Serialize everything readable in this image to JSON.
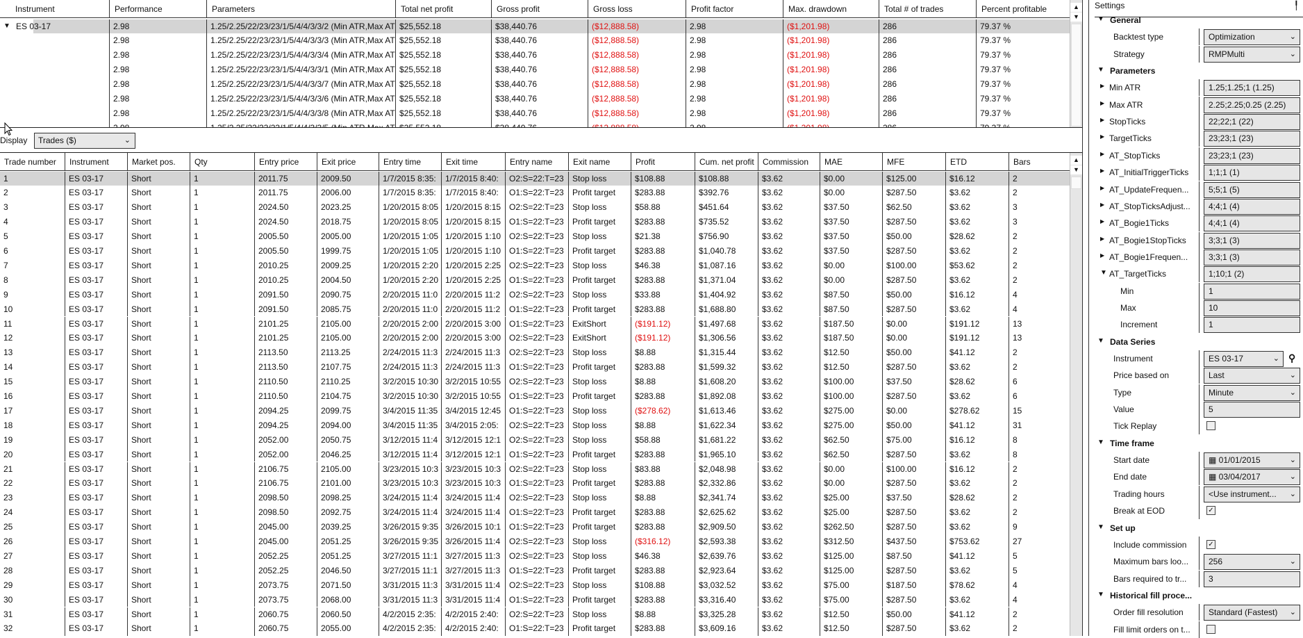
{
  "optimization_grid": {
    "columns": [
      "Instrument",
      "Performance",
      "Parameters",
      "Total net profit",
      "Gross profit",
      "Gross loss",
      "Profit factor",
      "Max. drawdown",
      "Total # of trades",
      "Percent profitable"
    ],
    "group_instrument": "ES 03-17",
    "rows": [
      [
        "2.98",
        "1.25/2.25/22/23/23/1/5/4/4/3/3/2 (Min ATR,Max AT",
        "$25,552.18",
        "$38,440.76",
        "($12,888.58)",
        "2.98",
        "($1,201.98)",
        "286",
        "79.37 %"
      ],
      [
        "2.98",
        "1.25/2.25/22/23/23/1/5/4/4/3/3/3 (Min ATR,Max AT",
        "$25,552.18",
        "$38,440.76",
        "($12,888.58)",
        "2.98",
        "($1,201.98)",
        "286",
        "79.37 %"
      ],
      [
        "2.98",
        "1.25/2.25/22/23/23/1/5/4/4/3/3/4 (Min ATR,Max AT",
        "$25,552.18",
        "$38,440.76",
        "($12,888.58)",
        "2.98",
        "($1,201.98)",
        "286",
        "79.37 %"
      ],
      [
        "2.98",
        "1.25/2.25/22/23/23/1/5/4/4/3/3/1 (Min ATR,Max AT",
        "$25,552.18",
        "$38,440.76",
        "($12,888.58)",
        "2.98",
        "($1,201.98)",
        "286",
        "79.37 %"
      ],
      [
        "2.98",
        "1.25/2.25/22/23/23/1/5/4/4/3/3/7 (Min ATR,Max AT",
        "$25,552.18",
        "$38,440.76",
        "($12,888.58)",
        "2.98",
        "($1,201.98)",
        "286",
        "79.37 %"
      ],
      [
        "2.98",
        "1.25/2.25/22/23/23/1/5/4/4/3/3/6 (Min ATR,Max AT",
        "$25,552.18",
        "$38,440.76",
        "($12,888.58)",
        "2.98",
        "($1,201.98)",
        "286",
        "79.37 %"
      ],
      [
        "2.98",
        "1.25/2.25/22/23/23/1/5/4/4/3/3/8 (Min ATR,Max AT",
        "$25,552.18",
        "$38,440.76",
        "($12,888.58)",
        "2.98",
        "($1,201.98)",
        "286",
        "79.37 %"
      ],
      [
        "2.98",
        "1.25/2.25/22/23/23/1/5/4/4/3/3/5 (Min ATR,Max AT",
        "$25,552.18",
        "$38,440.76",
        "($12,888.58)",
        "2.98",
        "($1,201.98)",
        "286",
        "79.37 %"
      ]
    ]
  },
  "display": {
    "label": "Display",
    "value": "Trades ($)"
  },
  "trades_grid": {
    "columns": [
      "Trade number",
      "Instrument",
      "Market pos.",
      "Qty",
      "Entry price",
      "Exit price",
      "Entry time",
      "Exit time",
      "Entry name",
      "Exit name",
      "Profit",
      "Cum. net profit",
      "Commission",
      "MAE",
      "MFE",
      "ETD",
      "Bars"
    ],
    "rows": [
      [
        "1",
        "ES 03-17",
        "Short",
        "1",
        "2011.75",
        "2009.50",
        "1/7/2015 8:35:",
        "1/7/2015 8:40:",
        "O2:S=22:T=23",
        "Stop loss",
        "$108.88",
        "$108.88",
        "$3.62",
        "$0.00",
        "$125.00",
        "$16.12",
        "2"
      ],
      [
        "2",
        "ES 03-17",
        "Short",
        "1",
        "2011.75",
        "2006.00",
        "1/7/2015 8:35:",
        "1/7/2015 8:40:",
        "O1:S=22:T=23",
        "Profit target",
        "$283.88",
        "$392.76",
        "$3.62",
        "$0.00",
        "$287.50",
        "$3.62",
        "2"
      ],
      [
        "3",
        "ES 03-17",
        "Short",
        "1",
        "2024.50",
        "2023.25",
        "1/20/2015 8:05",
        "1/20/2015 8:15",
        "O2:S=22:T=23",
        "Stop loss",
        "$58.88",
        "$451.64",
        "$3.62",
        "$37.50",
        "$62.50",
        "$3.62",
        "3"
      ],
      [
        "4",
        "ES 03-17",
        "Short",
        "1",
        "2024.50",
        "2018.75",
        "1/20/2015 8:05",
        "1/20/2015 8:15",
        "O1:S=22:T=23",
        "Profit target",
        "$283.88",
        "$735.52",
        "$3.62",
        "$37.50",
        "$287.50",
        "$3.62",
        "3"
      ],
      [
        "5",
        "ES 03-17",
        "Short",
        "1",
        "2005.50",
        "2005.00",
        "1/20/2015 1:05",
        "1/20/2015 1:10",
        "O2:S=22:T=23",
        "Stop loss",
        "$21.38",
        "$756.90",
        "$3.62",
        "$37.50",
        "$50.00",
        "$28.62",
        "2"
      ],
      [
        "6",
        "ES 03-17",
        "Short",
        "1",
        "2005.50",
        "1999.75",
        "1/20/2015 1:05",
        "1/20/2015 1:10",
        "O1:S=22:T=23",
        "Profit target",
        "$283.88",
        "$1,040.78",
        "$3.62",
        "$37.50",
        "$287.50",
        "$3.62",
        "2"
      ],
      [
        "7",
        "ES 03-17",
        "Short",
        "1",
        "2010.25",
        "2009.25",
        "1/20/2015 2:20",
        "1/20/2015 2:25",
        "O2:S=22:T=23",
        "Stop loss",
        "$46.38",
        "$1,087.16",
        "$3.62",
        "$0.00",
        "$100.00",
        "$53.62",
        "2"
      ],
      [
        "8",
        "ES 03-17",
        "Short",
        "1",
        "2010.25",
        "2004.50",
        "1/20/2015 2:20",
        "1/20/2015 2:25",
        "O1:S=22:T=23",
        "Profit target",
        "$283.88",
        "$1,371.04",
        "$3.62",
        "$0.00",
        "$287.50",
        "$3.62",
        "2"
      ],
      [
        "9",
        "ES 03-17",
        "Short",
        "1",
        "2091.50",
        "2090.75",
        "2/20/2015 11:0",
        "2/20/2015 11:2",
        "O2:S=22:T=23",
        "Stop loss",
        "$33.88",
        "$1,404.92",
        "$3.62",
        "$87.50",
        "$50.00",
        "$16.12",
        "4"
      ],
      [
        "10",
        "ES 03-17",
        "Short",
        "1",
        "2091.50",
        "2085.75",
        "2/20/2015 11:0",
        "2/20/2015 11:2",
        "O1:S=22:T=23",
        "Profit target",
        "$283.88",
        "$1,688.80",
        "$3.62",
        "$87.50",
        "$287.50",
        "$3.62",
        "4"
      ],
      [
        "11",
        "ES 03-17",
        "Short",
        "1",
        "2101.25",
        "2105.00",
        "2/20/2015 2:00",
        "2/20/2015 3:00",
        "O1:S=22:T=23",
        "ExitShort",
        "($191.12)",
        "$1,497.68",
        "$3.62",
        "$187.50",
        "$0.00",
        "$191.12",
        "13"
      ],
      [
        "12",
        "ES 03-17",
        "Short",
        "1",
        "2101.25",
        "2105.00",
        "2/20/2015 2:00",
        "2/20/2015 3:00",
        "O2:S=22:T=23",
        "ExitShort",
        "($191.12)",
        "$1,306.56",
        "$3.62",
        "$187.50",
        "$0.00",
        "$191.12",
        "13"
      ],
      [
        "13",
        "ES 03-17",
        "Short",
        "1",
        "2113.50",
        "2113.25",
        "2/24/2015 11:3",
        "2/24/2015 11:3",
        "O2:S=22:T=23",
        "Stop loss",
        "$8.88",
        "$1,315.44",
        "$3.62",
        "$12.50",
        "$50.00",
        "$41.12",
        "2"
      ],
      [
        "14",
        "ES 03-17",
        "Short",
        "1",
        "2113.50",
        "2107.75",
        "2/24/2015 11:3",
        "2/24/2015 11:3",
        "O1:S=22:T=23",
        "Profit target",
        "$283.88",
        "$1,599.32",
        "$3.62",
        "$12.50",
        "$287.50",
        "$3.62",
        "2"
      ],
      [
        "15",
        "ES 03-17",
        "Short",
        "1",
        "2110.50",
        "2110.25",
        "3/2/2015 10:30",
        "3/2/2015 10:55",
        "O2:S=22:T=23",
        "Stop loss",
        "$8.88",
        "$1,608.20",
        "$3.62",
        "$100.00",
        "$37.50",
        "$28.62",
        "6"
      ],
      [
        "16",
        "ES 03-17",
        "Short",
        "1",
        "2110.50",
        "2104.75",
        "3/2/2015 10:30",
        "3/2/2015 10:55",
        "O1:S=22:T=23",
        "Profit target",
        "$283.88",
        "$1,892.08",
        "$3.62",
        "$100.00",
        "$287.50",
        "$3.62",
        "6"
      ],
      [
        "17",
        "ES 03-17",
        "Short",
        "1",
        "2094.25",
        "2099.75",
        "3/4/2015 11:35",
        "3/4/2015 12:45",
        "O1:S=22:T=23",
        "Stop loss",
        "($278.62)",
        "$1,613.46",
        "$3.62",
        "$275.00",
        "$0.00",
        "$278.62",
        "15"
      ],
      [
        "18",
        "ES 03-17",
        "Short",
        "1",
        "2094.25",
        "2094.00",
        "3/4/2015 11:35",
        "3/4/2015 2:05:",
        "O2:S=22:T=23",
        "Stop loss",
        "$8.88",
        "$1,622.34",
        "$3.62",
        "$275.00",
        "$50.00",
        "$41.12",
        "31"
      ],
      [
        "19",
        "ES 03-17",
        "Short",
        "1",
        "2052.00",
        "2050.75",
        "3/12/2015 11:4",
        "3/12/2015 12:1",
        "O2:S=22:T=23",
        "Stop loss",
        "$58.88",
        "$1,681.22",
        "$3.62",
        "$62.50",
        "$75.00",
        "$16.12",
        "8"
      ],
      [
        "20",
        "ES 03-17",
        "Short",
        "1",
        "2052.00",
        "2046.25",
        "3/12/2015 11:4",
        "3/12/2015 12:1",
        "O1:S=22:T=23",
        "Profit target",
        "$283.88",
        "$1,965.10",
        "$3.62",
        "$62.50",
        "$287.50",
        "$3.62",
        "8"
      ],
      [
        "21",
        "ES 03-17",
        "Short",
        "1",
        "2106.75",
        "2105.00",
        "3/23/2015 10:3",
        "3/23/2015 10:3",
        "O2:S=22:T=23",
        "Stop loss",
        "$83.88",
        "$2,048.98",
        "$3.62",
        "$0.00",
        "$100.00",
        "$16.12",
        "2"
      ],
      [
        "22",
        "ES 03-17",
        "Short",
        "1",
        "2106.75",
        "2101.00",
        "3/23/2015 10:3",
        "3/23/2015 10:3",
        "O1:S=22:T=23",
        "Profit target",
        "$283.88",
        "$2,332.86",
        "$3.62",
        "$0.00",
        "$287.50",
        "$3.62",
        "2"
      ],
      [
        "23",
        "ES 03-17",
        "Short",
        "1",
        "2098.50",
        "2098.25",
        "3/24/2015 11:4",
        "3/24/2015 11:4",
        "O2:S=22:T=23",
        "Stop loss",
        "$8.88",
        "$2,341.74",
        "$3.62",
        "$25.00",
        "$37.50",
        "$28.62",
        "2"
      ],
      [
        "24",
        "ES 03-17",
        "Short",
        "1",
        "2098.50",
        "2092.75",
        "3/24/2015 11:4",
        "3/24/2015 11:4",
        "O1:S=22:T=23",
        "Profit target",
        "$283.88",
        "$2,625.62",
        "$3.62",
        "$25.00",
        "$287.50",
        "$3.62",
        "2"
      ],
      [
        "25",
        "ES 03-17",
        "Short",
        "1",
        "2045.00",
        "2039.25",
        "3/26/2015 9:35",
        "3/26/2015 10:1",
        "O1:S=22:T=23",
        "Profit target",
        "$283.88",
        "$2,909.50",
        "$3.62",
        "$262.50",
        "$287.50",
        "$3.62",
        "9"
      ],
      [
        "26",
        "ES 03-17",
        "Short",
        "1",
        "2045.00",
        "2051.25",
        "3/26/2015 9:35",
        "3/26/2015 11:4",
        "O2:S=22:T=23",
        "Stop loss",
        "($316.12)",
        "$2,593.38",
        "$3.62",
        "$312.50",
        "$437.50",
        "$753.62",
        "27"
      ],
      [
        "27",
        "ES 03-17",
        "Short",
        "1",
        "2052.25",
        "2051.25",
        "3/27/2015 11:1",
        "3/27/2015 11:3",
        "O2:S=22:T=23",
        "Stop loss",
        "$46.38",
        "$2,639.76",
        "$3.62",
        "$125.00",
        "$87.50",
        "$41.12",
        "5"
      ],
      [
        "28",
        "ES 03-17",
        "Short",
        "1",
        "2052.25",
        "2046.50",
        "3/27/2015 11:1",
        "3/27/2015 11:3",
        "O1:S=22:T=23",
        "Profit target",
        "$283.88",
        "$2,923.64",
        "$3.62",
        "$125.00",
        "$287.50",
        "$3.62",
        "5"
      ],
      [
        "29",
        "ES 03-17",
        "Short",
        "1",
        "2073.75",
        "2071.50",
        "3/31/2015 11:3",
        "3/31/2015 11:4",
        "O2:S=22:T=23",
        "Stop loss",
        "$108.88",
        "$3,032.52",
        "$3.62",
        "$75.00",
        "$187.50",
        "$78.62",
        "4"
      ],
      [
        "30",
        "ES 03-17",
        "Short",
        "1",
        "2073.75",
        "2068.00",
        "3/31/2015 11:3",
        "3/31/2015 11:4",
        "O1:S=22:T=23",
        "Profit target",
        "$283.88",
        "$3,316.40",
        "$3.62",
        "$75.00",
        "$287.50",
        "$3.62",
        "4"
      ],
      [
        "31",
        "ES 03-17",
        "Short",
        "1",
        "2060.75",
        "2060.50",
        "4/2/2015 2:35:",
        "4/2/2015 2:40:",
        "O2:S=22:T=23",
        "Stop loss",
        "$8.88",
        "$3,325.28",
        "$3.62",
        "$12.50",
        "$50.00",
        "$41.12",
        "2"
      ],
      [
        "32",
        "ES 03-17",
        "Short",
        "1",
        "2060.75",
        "2055.00",
        "4/2/2015 2:35:",
        "4/2/2015 2:40:",
        "O1:S=22:T=23",
        "Profit target",
        "$283.88",
        "$3,609.16",
        "$3.62",
        "$12.50",
        "$287.50",
        "$3.62",
        "2"
      ]
    ]
  },
  "settings": {
    "title": "Settings",
    "items": [
      {
        "kind": "section",
        "label": "General"
      },
      {
        "kind": "select",
        "label": "Backtest type",
        "value": "Optimization"
      },
      {
        "kind": "select",
        "label": "Strategy",
        "value": "RMPMulti"
      },
      {
        "kind": "section",
        "label": "Parameters"
      },
      {
        "kind": "param",
        "label": "Min ATR",
        "value": "1.25;1.25;1 (1.25)"
      },
      {
        "kind": "param",
        "label": "Max ATR",
        "value": "2.25;2.25;0.25 (2.25)"
      },
      {
        "kind": "param",
        "label": "StopTicks",
        "value": "22;22;1 (22)"
      },
      {
        "kind": "param",
        "label": "TargetTicks",
        "value": "23;23;1 (23)"
      },
      {
        "kind": "param",
        "label": "AT_StopTicks",
        "value": "23;23;1 (23)"
      },
      {
        "kind": "param",
        "label": "AT_InitialTriggerTicks",
        "value": "1;1;1 (1)"
      },
      {
        "kind": "param",
        "label": "AT_UpdateFrequen...",
        "value": "5;5;1 (5)"
      },
      {
        "kind": "param",
        "label": "AT_StopTicksAdjust...",
        "value": "4;4;1 (4)"
      },
      {
        "kind": "param",
        "label": "AT_Bogie1Ticks",
        "value": "4;4;1 (4)"
      },
      {
        "kind": "param",
        "label": "AT_Bogie1StopTicks",
        "value": "3;3;1 (3)"
      },
      {
        "kind": "param",
        "label": "AT_Bogie1Frequen...",
        "value": "3;3;1 (3)"
      },
      {
        "kind": "param-open",
        "label": "AT_TargetTicks",
        "value": "1;10;1 (2)"
      },
      {
        "kind": "sub",
        "label": "Min",
        "value": "1"
      },
      {
        "kind": "sub",
        "label": "Max",
        "value": "10"
      },
      {
        "kind": "sub",
        "label": "Increment",
        "value": "1"
      },
      {
        "kind": "section",
        "label": "Data Series"
      },
      {
        "kind": "instrument",
        "label": "Instrument",
        "value": "ES 03-17"
      },
      {
        "kind": "select",
        "label": "Price based on",
        "value": "Last"
      },
      {
        "kind": "select",
        "label": "Type",
        "value": "Minute"
      },
      {
        "kind": "input",
        "label": "Value",
        "value": "5"
      },
      {
        "kind": "check",
        "label": "Tick Replay",
        "checked": false
      },
      {
        "kind": "section",
        "label": "Time frame"
      },
      {
        "kind": "date",
        "label": "Start date",
        "value": "01/01/2015"
      },
      {
        "kind": "date",
        "label": "End date",
        "value": "03/04/2017"
      },
      {
        "kind": "select",
        "label": "Trading hours",
        "value": "<Use instrument..."
      },
      {
        "kind": "check",
        "label": "Break at EOD",
        "checked": true
      },
      {
        "kind": "section",
        "label": "Set up"
      },
      {
        "kind": "check",
        "label": "Include commission",
        "checked": true
      },
      {
        "kind": "select",
        "label": "Maximum bars loo...",
        "value": "256"
      },
      {
        "kind": "input",
        "label": "Bars required to tr...",
        "value": "3"
      },
      {
        "kind": "section",
        "label": "Historical fill proce..."
      },
      {
        "kind": "select",
        "label": "Order fill resolution",
        "value": "Standard (Fastest)"
      },
      {
        "kind": "check",
        "label": "Fill limit orders on t...",
        "checked": false
      }
    ]
  },
  "colors": {
    "negative": "#e01010",
    "selected_row": "#d4d4d4",
    "field_bg": "#e6e6e6"
  }
}
